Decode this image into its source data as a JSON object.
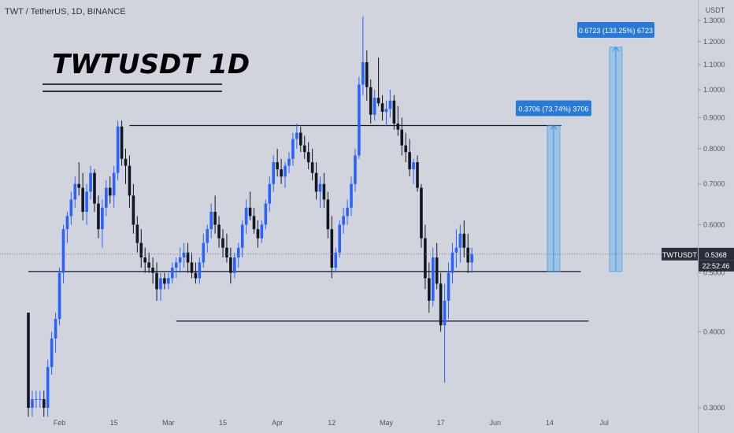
{
  "symbol_header": "TWT / TetherUS, 1D, BINANCE",
  "headline": "TWTUSDT 1D",
  "price_axis": {
    "unit": "USDT",
    "ticks": [
      "1.3000",
      "1.2000",
      "1.1000",
      "1.0000",
      "0.9000",
      "0.8000",
      "0.7000",
      "0.6000",
      "0.5000",
      "0.4000",
      "0.3000"
    ],
    "tick_values": [
      1.3,
      1.2,
      1.1,
      1.0,
      0.9,
      0.8,
      0.7,
      0.6,
      0.5,
      0.4,
      0.3
    ]
  },
  "time_axis": {
    "labels": [
      "Feb",
      "15",
      "Mar",
      "15",
      "Apr",
      "12",
      "May",
      "17",
      "Jun",
      "14",
      "Jul"
    ],
    "label_days": [
      14,
      28,
      42,
      56,
      70,
      84,
      98,
      112,
      126,
      140,
      154
    ]
  },
  "last_price": {
    "symbol": "TWTUSDT",
    "value": "0.5368",
    "countdown": "22:52:46",
    "price": 0.5368
  },
  "measures": [
    {
      "label": "0.3706 (73.74%) 3706",
      "from": 0.5026,
      "to": 0.8732,
      "day": 141
    },
    {
      "label": "0.6723 (133.25%) 6723",
      "from": 0.5026,
      "to": 1.1749,
      "day": 157
    }
  ],
  "levels": [
    {
      "name": "range-top",
      "price": 0.8732,
      "from_day": 32,
      "to_day": 143
    },
    {
      "name": "support",
      "price": 0.5026,
      "from_day": 6,
      "to_day": 148
    },
    {
      "name": "range-low",
      "price": 0.4165,
      "from_day": 44,
      "to_day": 150
    }
  ],
  "colors": {
    "up": "#2962ff",
    "down": "#131722",
    "bg": "#d1d4dc",
    "measure": "#2196f3",
    "label_bg": "#2979d8"
  },
  "chart_data": {
    "type": "candlestick",
    "title": "TWT / TetherUS, 1D, BINANCE",
    "ylabel": "USDT",
    "ylim": [
      0.29,
      1.32
    ],
    "y_scale": "log",
    "grid": false,
    "candles": [
      [
        0.43,
        0.43,
        0.29,
        0.3
      ],
      [
        0.3,
        0.32,
        0.29,
        0.31
      ],
      [
        0.31,
        0.32,
        0.3,
        0.31
      ],
      [
        0.31,
        0.32,
        0.3,
        0.31
      ],
      [
        0.31,
        0.32,
        0.29,
        0.3
      ],
      [
        0.3,
        0.36,
        0.29,
        0.35
      ],
      [
        0.35,
        0.4,
        0.34,
        0.39
      ],
      [
        0.39,
        0.43,
        0.37,
        0.42
      ],
      [
        0.42,
        0.51,
        0.41,
        0.5
      ],
      [
        0.5,
        0.6,
        0.48,
        0.59
      ],
      [
        0.59,
        0.63,
        0.56,
        0.62
      ],
      [
        0.62,
        0.68,
        0.6,
        0.66
      ],
      [
        0.66,
        0.72,
        0.64,
        0.7
      ],
      [
        0.7,
        0.76,
        0.67,
        0.69
      ],
      [
        0.69,
        0.73,
        0.61,
        0.63
      ],
      [
        0.63,
        0.7,
        0.6,
        0.68
      ],
      [
        0.68,
        0.75,
        0.66,
        0.73
      ],
      [
        0.73,
        0.74,
        0.63,
        0.65
      ],
      [
        0.65,
        0.67,
        0.57,
        0.59
      ],
      [
        0.59,
        0.66,
        0.55,
        0.64
      ],
      [
        0.64,
        0.71,
        0.62,
        0.69
      ],
      [
        0.69,
        0.72,
        0.65,
        0.67
      ],
      [
        0.67,
        0.75,
        0.64,
        0.73
      ],
      [
        0.73,
        0.89,
        0.71,
        0.87
      ],
      [
        0.87,
        0.89,
        0.75,
        0.77
      ],
      [
        0.77,
        0.8,
        0.7,
        0.75
      ],
      [
        0.75,
        0.78,
        0.64,
        0.67
      ],
      [
        0.67,
        0.7,
        0.58,
        0.6
      ],
      [
        0.6,
        0.62,
        0.54,
        0.56
      ],
      [
        0.56,
        0.59,
        0.51,
        0.53
      ],
      [
        0.53,
        0.55,
        0.5,
        0.52
      ],
      [
        0.52,
        0.54,
        0.5,
        0.51
      ],
      [
        0.51,
        0.53,
        0.48,
        0.5
      ],
      [
        0.5,
        0.52,
        0.45,
        0.47
      ],
      [
        0.47,
        0.5,
        0.45,
        0.49
      ],
      [
        0.49,
        0.5,
        0.47,
        0.48
      ],
      [
        0.48,
        0.5,
        0.47,
        0.49
      ],
      [
        0.49,
        0.52,
        0.48,
        0.51
      ],
      [
        0.51,
        0.53,
        0.49,
        0.52
      ],
      [
        0.52,
        0.55,
        0.5,
        0.53
      ],
      [
        0.53,
        0.56,
        0.51,
        0.54
      ],
      [
        0.54,
        0.56,
        0.5,
        0.52
      ],
      [
        0.52,
        0.54,
        0.49,
        0.5
      ],
      [
        0.5,
        0.52,
        0.48,
        0.49
      ],
      [
        0.49,
        0.53,
        0.48,
        0.52
      ],
      [
        0.52,
        0.58,
        0.51,
        0.56
      ],
      [
        0.56,
        0.6,
        0.54,
        0.59
      ],
      [
        0.59,
        0.65,
        0.57,
        0.63
      ],
      [
        0.63,
        0.67,
        0.58,
        0.6
      ],
      [
        0.6,
        0.62,
        0.55,
        0.57
      ],
      [
        0.57,
        0.59,
        0.53,
        0.55
      ],
      [
        0.55,
        0.58,
        0.52,
        0.53
      ],
      [
        0.53,
        0.55,
        0.48,
        0.5
      ],
      [
        0.5,
        0.54,
        0.49,
        0.53
      ],
      [
        0.53,
        0.56,
        0.51,
        0.55
      ],
      [
        0.55,
        0.61,
        0.53,
        0.6
      ],
      [
        0.6,
        0.66,
        0.58,
        0.64
      ],
      [
        0.64,
        0.68,
        0.61,
        0.62
      ],
      [
        0.62,
        0.64,
        0.58,
        0.59
      ],
      [
        0.59,
        0.61,
        0.55,
        0.57
      ],
      [
        0.57,
        0.61,
        0.56,
        0.6
      ],
      [
        0.6,
        0.66,
        0.59,
        0.65
      ],
      [
        0.65,
        0.72,
        0.63,
        0.7
      ],
      [
        0.7,
        0.78,
        0.68,
        0.76
      ],
      [
        0.76,
        0.8,
        0.72,
        0.74
      ],
      [
        0.74,
        0.77,
        0.7,
        0.72
      ],
      [
        0.72,
        0.76,
        0.69,
        0.75
      ],
      [
        0.75,
        0.79,
        0.73,
        0.77
      ],
      [
        0.77,
        0.85,
        0.75,
        0.83
      ],
      [
        0.83,
        0.88,
        0.8,
        0.85
      ],
      [
        0.85,
        0.87,
        0.79,
        0.81
      ],
      [
        0.81,
        0.84,
        0.77,
        0.79
      ],
      [
        0.79,
        0.82,
        0.74,
        0.76
      ],
      [
        0.76,
        0.8,
        0.71,
        0.73
      ],
      [
        0.73,
        0.76,
        0.66,
        0.68
      ],
      [
        0.68,
        0.72,
        0.64,
        0.7
      ],
      [
        0.7,
        0.73,
        0.64,
        0.66
      ],
      [
        0.66,
        0.68,
        0.57,
        0.59
      ],
      [
        0.59,
        0.62,
        0.49,
        0.51
      ],
      [
        0.51,
        0.55,
        0.5,
        0.54
      ],
      [
        0.54,
        0.61,
        0.53,
        0.6
      ],
      [
        0.6,
        0.64,
        0.58,
        0.62
      ],
      [
        0.62,
        0.66,
        0.6,
        0.64
      ],
      [
        0.64,
        0.72,
        0.62,
        0.7
      ],
      [
        0.7,
        0.8,
        0.68,
        0.78
      ],
      [
        0.78,
        1.05,
        0.77,
        1.02
      ],
      [
        1.02,
        1.32,
        0.98,
        1.11
      ],
      [
        1.11,
        1.16,
        0.96,
        1.01
      ],
      [
        1.01,
        1.04,
        0.88,
        0.91
      ],
      [
        0.91,
        1.0,
        0.89,
        0.97
      ],
      [
        0.97,
        1.13,
        0.94,
        0.95
      ],
      [
        0.95,
        0.98,
        0.89,
        0.92
      ],
      [
        0.92,
        0.96,
        0.87,
        0.93
      ],
      [
        0.93,
        1.0,
        0.9,
        0.96
      ],
      [
        0.96,
        0.98,
        0.86,
        0.88
      ],
      [
        0.88,
        0.94,
        0.84,
        0.86
      ],
      [
        0.86,
        0.9,
        0.78,
        0.81
      ],
      [
        0.81,
        0.85,
        0.76,
        0.79
      ],
      [
        0.79,
        0.83,
        0.72,
        0.74
      ],
      [
        0.74,
        0.77,
        0.7,
        0.76
      ],
      [
        0.76,
        0.78,
        0.68,
        0.69
      ],
      [
        0.69,
        0.7,
        0.55,
        0.57
      ],
      [
        0.57,
        0.6,
        0.47,
        0.49
      ],
      [
        0.49,
        0.52,
        0.43,
        0.45
      ],
      [
        0.45,
        0.55,
        0.44,
        0.53
      ],
      [
        0.53,
        0.56,
        0.47,
        0.48
      ],
      [
        0.48,
        0.5,
        0.4,
        0.41
      ],
      [
        0.41,
        0.48,
        0.33,
        0.45
      ],
      [
        0.45,
        0.52,
        0.42,
        0.5
      ],
      [
        0.5,
        0.56,
        0.48,
        0.54
      ],
      [
        0.54,
        0.59,
        0.51,
        0.55
      ],
      [
        0.55,
        0.6,
        0.52,
        0.58
      ],
      [
        0.58,
        0.61,
        0.53,
        0.55
      ],
      [
        0.55,
        0.58,
        0.5,
        0.52
      ],
      [
        0.52,
        0.55,
        0.5,
        0.5368
      ]
    ]
  }
}
